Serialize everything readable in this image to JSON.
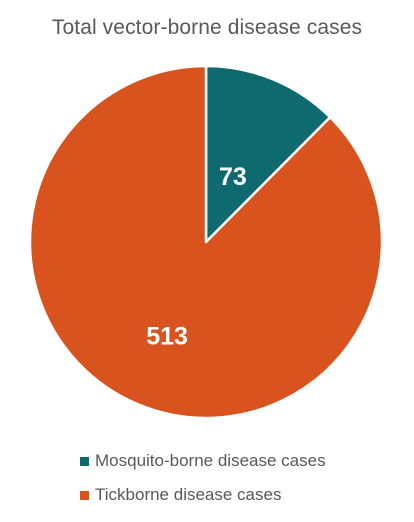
{
  "chart_data": {
    "type": "pie",
    "title": "Total vector-borne disease cases",
    "slices": [
      {
        "label": "Mosquito-borne disease cases",
        "value": 73,
        "color": "#0e6a6e"
      },
      {
        "label": "Tickborne disease cases",
        "value": 513,
        "color": "#d9531e"
      }
    ],
    "legend_position": "bottom",
    "start_angle_deg": 0,
    "direction": "clockwise"
  }
}
